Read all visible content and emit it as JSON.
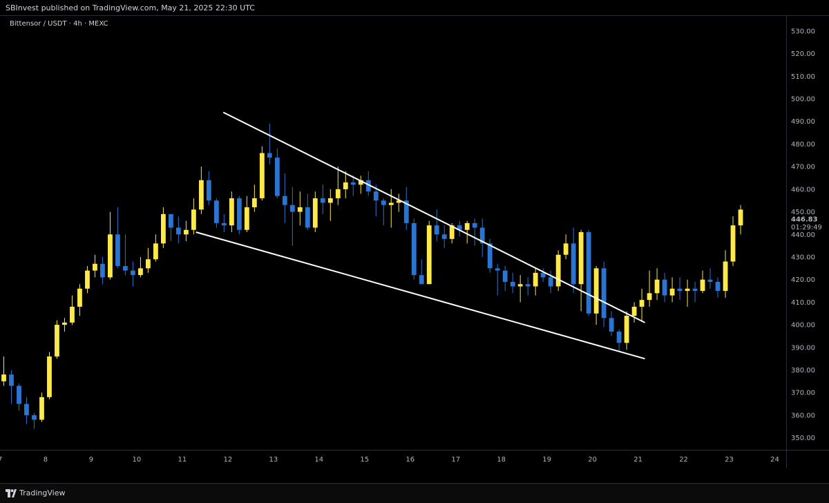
{
  "header": {
    "published": "SBInvest published on TradingView.com, May 21, 2025 22:30 UTC"
  },
  "symbol_label": "Bittensor / USDT · 4h · MEXC",
  "footer": {
    "brand": "TradingView"
  },
  "colors": {
    "background": "#000000",
    "bullish": "#FFE94A",
    "bearish": "#2A74D2",
    "trendline": "#FFFFFF",
    "axis_text": "#B2B5BE"
  },
  "chart_data": {
    "type": "candlestick",
    "ylim": [
      345,
      537
    ],
    "x_range": [
      7.0,
      24.25
    ],
    "y_ticks": [
      350,
      360,
      370,
      380,
      390,
      400,
      410,
      420,
      430,
      440,
      450,
      460,
      470,
      480,
      490,
      500,
      510,
      520,
      530
    ],
    "y_tick_labels": [
      "350.00",
      "360.00",
      "370.00",
      "380.00",
      "390.00",
      "400.00",
      "410.00",
      "420.00",
      "430.00",
      "440.00",
      "450.00",
      "460.00",
      "470.00",
      "480.00",
      "490.00",
      "500.00",
      "510.00",
      "520.00",
      "530.00"
    ],
    "x_ticks": [
      7,
      8,
      9,
      10,
      11,
      12,
      13,
      14,
      15,
      16,
      17,
      18,
      19,
      20,
      21,
      22,
      23,
      24
    ],
    "x_tick_labels": [
      "7",
      "8",
      "9",
      "10",
      "11",
      "12",
      "13",
      "14",
      "15",
      "16",
      "17",
      "18",
      "19",
      "20",
      "21",
      "22",
      "23",
      "24"
    ],
    "last_price": {
      "value": 446.83,
      "label": "446.83",
      "countdown": "01:29:49"
    },
    "candles": [
      [
        375,
        378,
        386,
        373
      ],
      [
        378,
        373,
        380,
        365
      ],
      [
        373,
        365,
        374,
        362
      ],
      [
        365,
        360,
        368,
        356
      ],
      [
        360,
        358,
        361,
        354
      ],
      [
        358,
        368,
        370,
        357
      ],
      [
        368,
        386,
        388,
        367
      ],
      [
        386,
        400,
        402,
        385
      ],
      [
        400,
        401,
        403,
        397
      ],
      [
        401,
        408,
        413,
        400
      ],
      [
        408,
        416,
        418,
        404
      ],
      [
        416,
        424,
        426,
        414
      ],
      [
        424,
        427,
        431,
        421
      ],
      [
        427,
        421,
        430,
        418
      ],
      [
        421,
        440,
        450,
        420
      ],
      [
        440,
        426,
        452,
        425
      ],
      [
        426,
        424,
        440,
        422
      ],
      [
        424,
        422,
        428,
        417
      ],
      [
        422,
        425,
        430,
        421
      ],
      [
        425,
        429,
        434,
        423
      ],
      [
        429,
        436,
        440,
        428
      ],
      [
        436,
        449,
        452,
        434
      ],
      [
        449,
        443,
        446,
        437
      ],
      [
        443,
        440,
        448,
        436
      ],
      [
        440,
        442,
        446,
        437
      ],
      [
        442,
        451,
        456,
        440
      ],
      [
        451,
        464,
        470,
        449
      ],
      [
        464,
        455,
        468,
        453
      ],
      [
        455,
        445,
        456,
        443
      ],
      [
        445,
        444,
        449,
        441
      ],
      [
        444,
        456,
        459,
        441
      ],
      [
        456,
        442,
        457,
        440
      ],
      [
        442,
        452,
        457,
        441
      ],
      [
        452,
        456,
        462,
        450
      ],
      [
        456,
        476,
        479,
        455
      ],
      [
        476,
        474,
        489,
        471
      ],
      [
        474,
        457,
        478,
        456
      ],
      [
        457,
        453,
        467,
        445
      ],
      [
        453,
        450,
        461,
        435
      ],
      [
        450,
        452,
        459,
        444
      ],
      [
        452,
        443,
        458,
        442
      ],
      [
        443,
        456,
        459,
        441
      ],
      [
        456,
        454,
        462,
        449
      ],
      [
        454,
        456,
        460,
        446
      ],
      [
        456,
        460,
        470,
        453
      ],
      [
        460,
        463,
        468,
        456
      ],
      [
        463,
        462,
        466,
        457
      ],
      [
        462,
        464,
        466,
        458
      ],
      [
        464,
        459,
        468,
        457
      ],
      [
        459,
        455,
        462,
        448
      ],
      [
        455,
        453,
        456,
        444
      ],
      [
        453,
        454,
        460,
        443
      ],
      [
        454,
        455,
        458,
        450
      ],
      [
        455,
        445,
        461,
        442
      ],
      [
        445,
        422,
        447,
        420
      ],
      [
        422,
        418,
        429,
        418
      ],
      [
        418,
        444,
        446,
        420
      ],
      [
        444,
        440,
        451,
        437
      ],
      [
        440,
        438,
        444,
        434
      ],
      [
        438,
        444,
        445,
        436
      ],
      [
        444,
        442,
        446,
        439
      ],
      [
        442,
        445,
        446,
        436
      ],
      [
        445,
        443,
        447,
        435
      ],
      [
        443,
        436,
        447,
        430
      ],
      [
        436,
        425,
        438,
        423
      ],
      [
        425,
        424,
        427,
        413
      ],
      [
        424,
        419,
        426,
        415
      ],
      [
        419,
        417,
        423,
        414
      ],
      [
        417,
        418,
        422,
        410
      ],
      [
        418,
        417,
        421,
        413
      ],
      [
        417,
        423,
        425,
        413
      ],
      [
        423,
        421,
        425,
        419
      ],
      [
        421,
        417,
        424,
        414
      ],
      [
        417,
        431,
        433,
        415
      ],
      [
        431,
        436,
        440,
        429
      ],
      [
        436,
        418,
        443,
        414
      ],
      [
        418,
        441,
        442,
        406
      ],
      [
        441,
        405,
        442,
        404
      ],
      [
        405,
        425,
        426,
        400
      ],
      [
        425,
        403,
        428,
        399
      ],
      [
        403,
        397,
        406,
        395
      ],
      [
        397,
        392,
        398,
        388
      ],
      [
        392,
        404,
        406,
        389
      ],
      [
        404,
        408,
        410,
        401
      ],
      [
        408,
        411,
        416,
        402
      ],
      [
        411,
        414,
        424,
        408
      ],
      [
        414,
        420,
        425,
        411
      ],
      [
        420,
        413,
        423,
        410
      ],
      [
        413,
        416,
        421,
        410
      ],
      [
        416,
        415,
        421,
        411
      ],
      [
        415,
        416,
        420,
        408
      ],
      [
        416,
        415,
        419,
        410
      ],
      [
        415,
        420,
        424,
        414
      ],
      [
        420,
        419,
        425,
        416
      ],
      [
        419,
        415,
        421,
        412
      ],
      [
        415,
        428,
        433,
        412
      ],
      [
        428,
        444,
        448,
        426
      ],
      [
        444,
        451,
        453,
        440
      ]
    ],
    "trendlines": [
      {
        "name": "upper",
        "from": [
          11.9,
          494
        ],
        "to": [
          21.15,
          401
        ]
      },
      {
        "name": "lower",
        "from": [
          11.3,
          441
        ],
        "to": [
          21.15,
          385
        ]
      }
    ]
  }
}
